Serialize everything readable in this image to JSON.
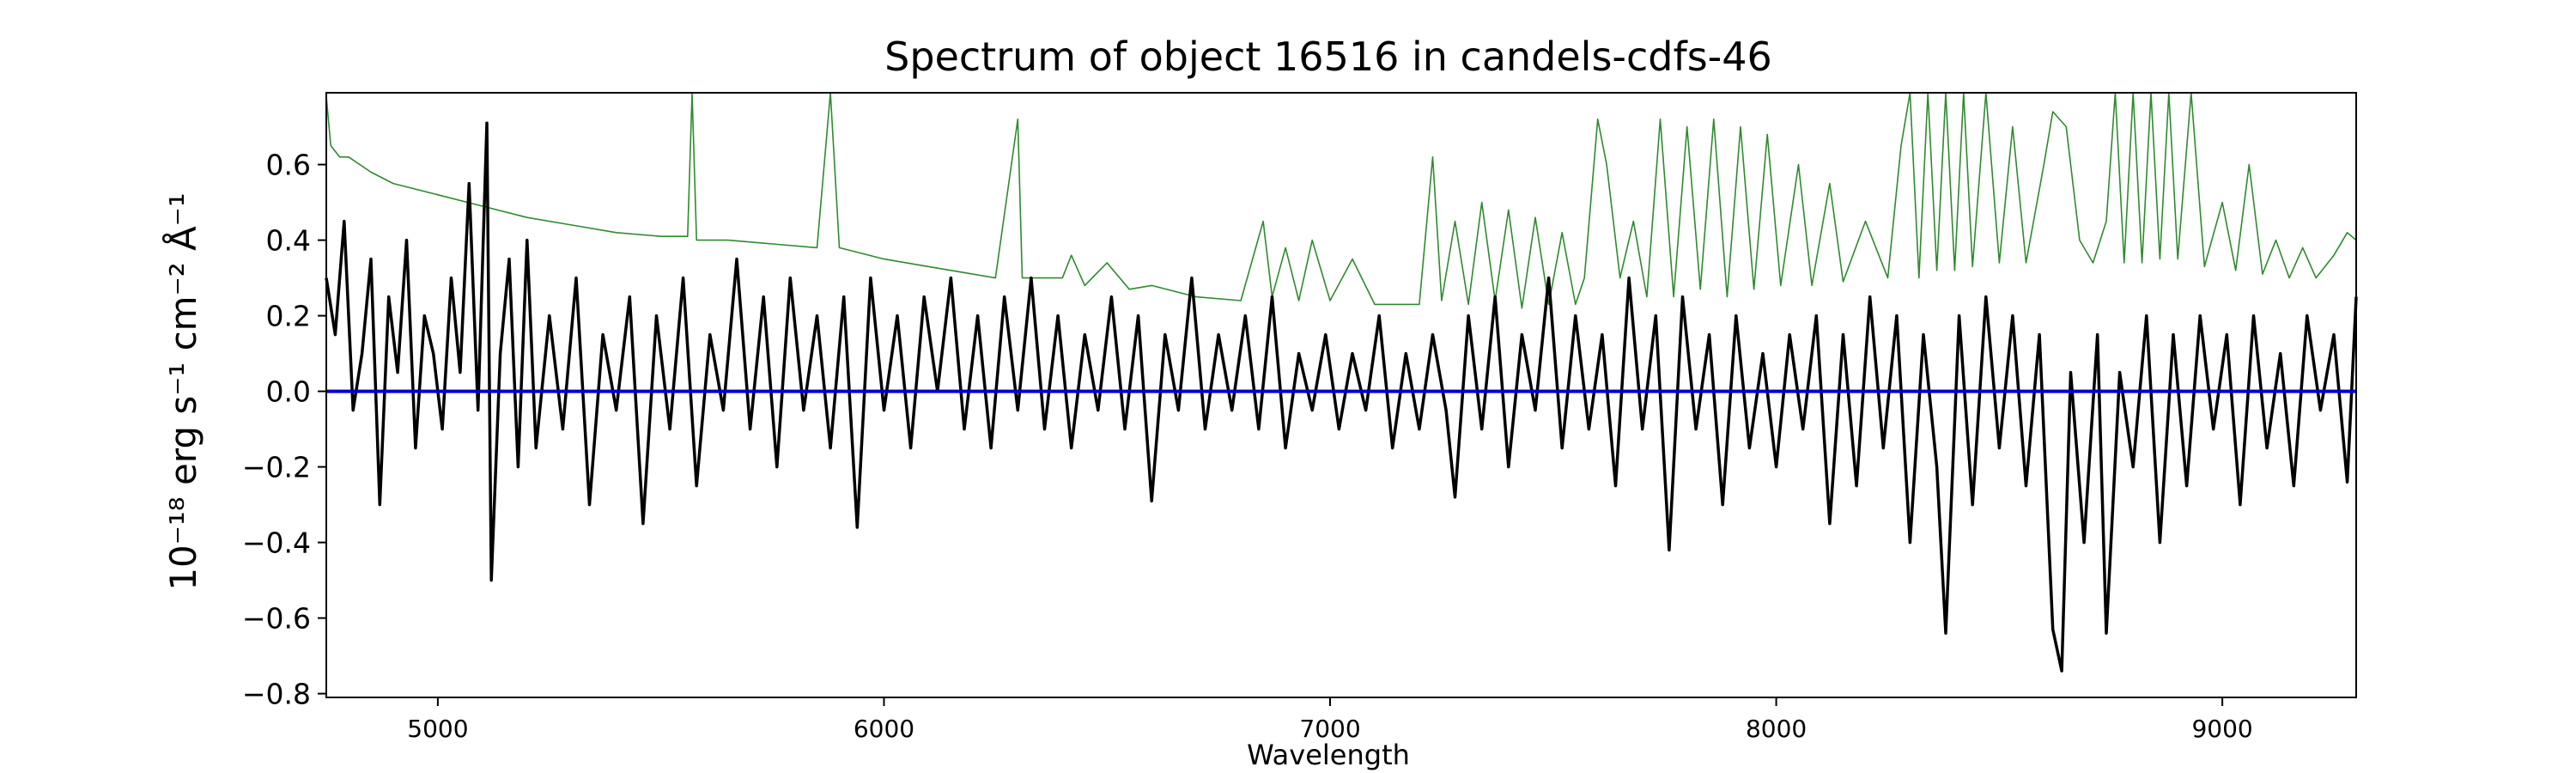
{
  "chart_data": {
    "type": "line",
    "title": "Spectrum of object 16516 in candels-cdfs-46",
    "xlabel": "Wavelength",
    "ylabel": "10⁻¹⁸ erg s⁻¹ cm⁻² Å⁻¹",
    "xlim": [
      4750,
      9300
    ],
    "ylim": [
      -0.81,
      0.79
    ],
    "xticks": [
      5000,
      6000,
      7000,
      8000,
      9000
    ],
    "xtick_labels": [
      "5000",
      "6000",
      "7000",
      "8000",
      "9000"
    ],
    "yticks": [
      0.6,
      0.4,
      0.2,
      0.0,
      -0.2,
      -0.4,
      -0.6,
      -0.8
    ],
    "ytick_labels": [
      "0.6",
      "0.4",
      "0.2",
      "0.0",
      "−0.2",
      "−0.4",
      "−0.6",
      "−0.8"
    ],
    "grid": false,
    "series": [
      {
        "role": "flux",
        "color": "#000000",
        "points": [
          [
            4750,
            0.3
          ],
          [
            4770,
            0.15
          ],
          [
            4790,
            0.45
          ],
          [
            4810,
            -0.05
          ],
          [
            4830,
            0.1
          ],
          [
            4850,
            0.35
          ],
          [
            4870,
            -0.3
          ],
          [
            4890,
            0.25
          ],
          [
            4910,
            0.05
          ],
          [
            4930,
            0.4
          ],
          [
            4950,
            -0.15
          ],
          [
            4970,
            0.2
          ],
          [
            4990,
            0.1
          ],
          [
            5010,
            -0.1
          ],
          [
            5030,
            0.3
          ],
          [
            5050,
            0.05
          ],
          [
            5070,
            0.55
          ],
          [
            5090,
            -0.05
          ],
          [
            5110,
            0.71
          ],
          [
            5120,
            -0.5
          ],
          [
            5140,
            0.1
          ],
          [
            5160,
            0.35
          ],
          [
            5180,
            -0.2
          ],
          [
            5200,
            0.4
          ],
          [
            5220,
            -0.15
          ],
          [
            5250,
            0.2
          ],
          [
            5280,
            -0.1
          ],
          [
            5310,
            0.3
          ],
          [
            5340,
            -0.3
          ],
          [
            5370,
            0.15
          ],
          [
            5400,
            -0.05
          ],
          [
            5430,
            0.25
          ],
          [
            5460,
            -0.35
          ],
          [
            5490,
            0.2
          ],
          [
            5520,
            -0.1
          ],
          [
            5550,
            0.3
          ],
          [
            5580,
            -0.25
          ],
          [
            5610,
            0.15
          ],
          [
            5640,
            -0.05
          ],
          [
            5670,
            0.35
          ],
          [
            5700,
            -0.1
          ],
          [
            5730,
            0.25
          ],
          [
            5760,
            -0.2
          ],
          [
            5790,
            0.3
          ],
          [
            5820,
            -0.05
          ],
          [
            5850,
            0.2
          ],
          [
            5880,
            -0.15
          ],
          [
            5910,
            0.25
          ],
          [
            5940,
            -0.36
          ],
          [
            5970,
            0.3
          ],
          [
            6000,
            -0.05
          ],
          [
            6030,
            0.2
          ],
          [
            6060,
            -0.15
          ],
          [
            6090,
            0.25
          ],
          [
            6120,
            0.0
          ],
          [
            6150,
            0.3
          ],
          [
            6180,
            -0.1
          ],
          [
            6210,
            0.2
          ],
          [
            6240,
            -0.15
          ],
          [
            6270,
            0.25
          ],
          [
            6300,
            -0.05
          ],
          [
            6330,
            0.3
          ],
          [
            6360,
            -0.1
          ],
          [
            6390,
            0.2
          ],
          [
            6420,
            -0.15
          ],
          [
            6450,
            0.15
          ],
          [
            6480,
            -0.05
          ],
          [
            6510,
            0.25
          ],
          [
            6540,
            -0.1
          ],
          [
            6570,
            0.2
          ],
          [
            6600,
            -0.29
          ],
          [
            6630,
            0.15
          ],
          [
            6660,
            -0.05
          ],
          [
            6690,
            0.3
          ],
          [
            6720,
            -0.1
          ],
          [
            6750,
            0.15
          ],
          [
            6780,
            -0.05
          ],
          [
            6810,
            0.2
          ],
          [
            6840,
            -0.1
          ],
          [
            6870,
            0.25
          ],
          [
            6900,
            -0.15
          ],
          [
            6930,
            0.1
          ],
          [
            6960,
            -0.05
          ],
          [
            6990,
            0.15
          ],
          [
            7020,
            -0.1
          ],
          [
            7050,
            0.1
          ],
          [
            7080,
            -0.05
          ],
          [
            7110,
            0.2
          ],
          [
            7140,
            -0.15
          ],
          [
            7170,
            0.1
          ],
          [
            7200,
            -0.1
          ],
          [
            7230,
            0.15
          ],
          [
            7260,
            -0.05
          ],
          [
            7280,
            -0.28
          ],
          [
            7310,
            0.2
          ],
          [
            7340,
            -0.1
          ],
          [
            7370,
            0.25
          ],
          [
            7400,
            -0.2
          ],
          [
            7430,
            0.15
          ],
          [
            7460,
            -0.05
          ],
          [
            7490,
            0.3
          ],
          [
            7520,
            -0.15
          ],
          [
            7550,
            0.2
          ],
          [
            7580,
            -0.1
          ],
          [
            7610,
            0.15
          ],
          [
            7640,
            -0.25
          ],
          [
            7670,
            0.3
          ],
          [
            7700,
            -0.1
          ],
          [
            7730,
            0.2
          ],
          [
            7760,
            -0.42
          ],
          [
            7790,
            0.25
          ],
          [
            7820,
            -0.1
          ],
          [
            7850,
            0.15
          ],
          [
            7880,
            -0.3
          ],
          [
            7910,
            0.2
          ],
          [
            7940,
            -0.15
          ],
          [
            7970,
            0.1
          ],
          [
            8000,
            -0.2
          ],
          [
            8030,
            0.15
          ],
          [
            8060,
            -0.1
          ],
          [
            8090,
            0.2
          ],
          [
            8120,
            -0.35
          ],
          [
            8150,
            0.15
          ],
          [
            8180,
            -0.25
          ],
          [
            8210,
            0.25
          ],
          [
            8240,
            -0.15
          ],
          [
            8270,
            0.2
          ],
          [
            8300,
            -0.4
          ],
          [
            8330,
            0.15
          ],
          [
            8360,
            -0.2
          ],
          [
            8380,
            -0.64
          ],
          [
            8410,
            0.2
          ],
          [
            8440,
            -0.3
          ],
          [
            8470,
            0.25
          ],
          [
            8500,
            -0.15
          ],
          [
            8530,
            0.2
          ],
          [
            8560,
            -0.25
          ],
          [
            8590,
            0.15
          ],
          [
            8620,
            -0.63
          ],
          [
            8640,
            -0.74
          ],
          [
            8660,
            0.05
          ],
          [
            8690,
            -0.4
          ],
          [
            8720,
            0.15
          ],
          [
            8740,
            -0.64
          ],
          [
            8770,
            0.05
          ],
          [
            8800,
            -0.2
          ],
          [
            8830,
            0.2
          ],
          [
            8860,
            -0.4
          ],
          [
            8890,
            0.15
          ],
          [
            8920,
            -0.25
          ],
          [
            8950,
            0.2
          ],
          [
            8980,
            -0.1
          ],
          [
            9010,
            0.15
          ],
          [
            9040,
            -0.3
          ],
          [
            9070,
            0.2
          ],
          [
            9100,
            -0.15
          ],
          [
            9130,
            0.1
          ],
          [
            9160,
            -0.25
          ],
          [
            9190,
            0.2
          ],
          [
            9220,
            -0.05
          ],
          [
            9250,
            0.15
          ],
          [
            9280,
            -0.24
          ],
          [
            9300,
            0.25
          ]
        ]
      },
      {
        "role": "error",
        "color": "#2e8b2e",
        "points": [
          [
            4750,
            0.78
          ],
          [
            4760,
            0.65
          ],
          [
            4780,
            0.62
          ],
          [
            4800,
            0.62
          ],
          [
            4850,
            0.58
          ],
          [
            4900,
            0.55
          ],
          [
            5000,
            0.52
          ],
          [
            5100,
            0.49
          ],
          [
            5200,
            0.46
          ],
          [
            5300,
            0.44
          ],
          [
            5400,
            0.42
          ],
          [
            5500,
            0.41
          ],
          [
            5560,
            0.41
          ],
          [
            5570,
            0.79
          ],
          [
            5580,
            0.4
          ],
          [
            5650,
            0.4
          ],
          [
            5750,
            0.39
          ],
          [
            5850,
            0.38
          ],
          [
            5880,
            0.79
          ],
          [
            5900,
            0.38
          ],
          [
            6000,
            0.35
          ],
          [
            6100,
            0.33
          ],
          [
            6200,
            0.31
          ],
          [
            6250,
            0.3
          ],
          [
            6300,
            0.72
          ],
          [
            6310,
            0.3
          ],
          [
            6400,
            0.3
          ],
          [
            6420,
            0.36
          ],
          [
            6450,
            0.28
          ],
          [
            6500,
            0.34
          ],
          [
            6550,
            0.27
          ],
          [
            6600,
            0.28
          ],
          [
            6700,
            0.25
          ],
          [
            6800,
            0.24
          ],
          [
            6850,
            0.45
          ],
          [
            6870,
            0.25
          ],
          [
            6900,
            0.38
          ],
          [
            6930,
            0.24
          ],
          [
            6960,
            0.4
          ],
          [
            7000,
            0.24
          ],
          [
            7050,
            0.35
          ],
          [
            7100,
            0.23
          ],
          [
            7150,
            0.23
          ],
          [
            7200,
            0.23
          ],
          [
            7230,
            0.62
          ],
          [
            7250,
            0.24
          ],
          [
            7280,
            0.45
          ],
          [
            7310,
            0.23
          ],
          [
            7340,
            0.5
          ],
          [
            7370,
            0.24
          ],
          [
            7400,
            0.48
          ],
          [
            7430,
            0.22
          ],
          [
            7460,
            0.46
          ],
          [
            7490,
            0.23
          ],
          [
            7520,
            0.42
          ],
          [
            7550,
            0.23
          ],
          [
            7570,
            0.3
          ],
          [
            7600,
            0.72
          ],
          [
            7620,
            0.6
          ],
          [
            7650,
            0.3
          ],
          [
            7680,
            0.45
          ],
          [
            7710,
            0.25
          ],
          [
            7740,
            0.72
          ],
          [
            7770,
            0.25
          ],
          [
            7800,
            0.7
          ],
          [
            7830,
            0.27
          ],
          [
            7860,
            0.72
          ],
          [
            7890,
            0.25
          ],
          [
            7920,
            0.7
          ],
          [
            7950,
            0.27
          ],
          [
            7980,
            0.68
          ],
          [
            8010,
            0.28
          ],
          [
            8050,
            0.6
          ],
          [
            8080,
            0.28
          ],
          [
            8120,
            0.55
          ],
          [
            8150,
            0.29
          ],
          [
            8200,
            0.45
          ],
          [
            8250,
            0.3
          ],
          [
            8280,
            0.65
          ],
          [
            8300,
            0.79
          ],
          [
            8320,
            0.3
          ],
          [
            8340,
            0.79
          ],
          [
            8360,
            0.32
          ],
          [
            8380,
            0.79
          ],
          [
            8400,
            0.32
          ],
          [
            8420,
            0.79
          ],
          [
            8440,
            0.33
          ],
          [
            8470,
            0.79
          ],
          [
            8500,
            0.34
          ],
          [
            8530,
            0.7
          ],
          [
            8560,
            0.34
          ],
          [
            8600,
            0.6
          ],
          [
            8620,
            0.74
          ],
          [
            8650,
            0.7
          ],
          [
            8680,
            0.4
          ],
          [
            8710,
            0.34
          ],
          [
            8740,
            0.45
          ],
          [
            8760,
            0.79
          ],
          [
            8780,
            0.34
          ],
          [
            8800,
            0.79
          ],
          [
            8820,
            0.34
          ],
          [
            8840,
            0.79
          ],
          [
            8860,
            0.35
          ],
          [
            8880,
            0.79
          ],
          [
            8900,
            0.35
          ],
          [
            8930,
            0.79
          ],
          [
            8960,
            0.33
          ],
          [
            9000,
            0.5
          ],
          [
            9030,
            0.32
          ],
          [
            9060,
            0.6
          ],
          [
            9090,
            0.31
          ],
          [
            9120,
            0.4
          ],
          [
            9150,
            0.3
          ],
          [
            9180,
            0.38
          ],
          [
            9210,
            0.3
          ],
          [
            9250,
            0.36
          ],
          [
            9280,
            0.42
          ],
          [
            9300,
            0.4
          ]
        ]
      },
      {
        "role": "zero",
        "color": "#0000cc",
        "points": [
          [
            4750,
            0.0
          ],
          [
            9300,
            0.0
          ]
        ]
      }
    ]
  }
}
